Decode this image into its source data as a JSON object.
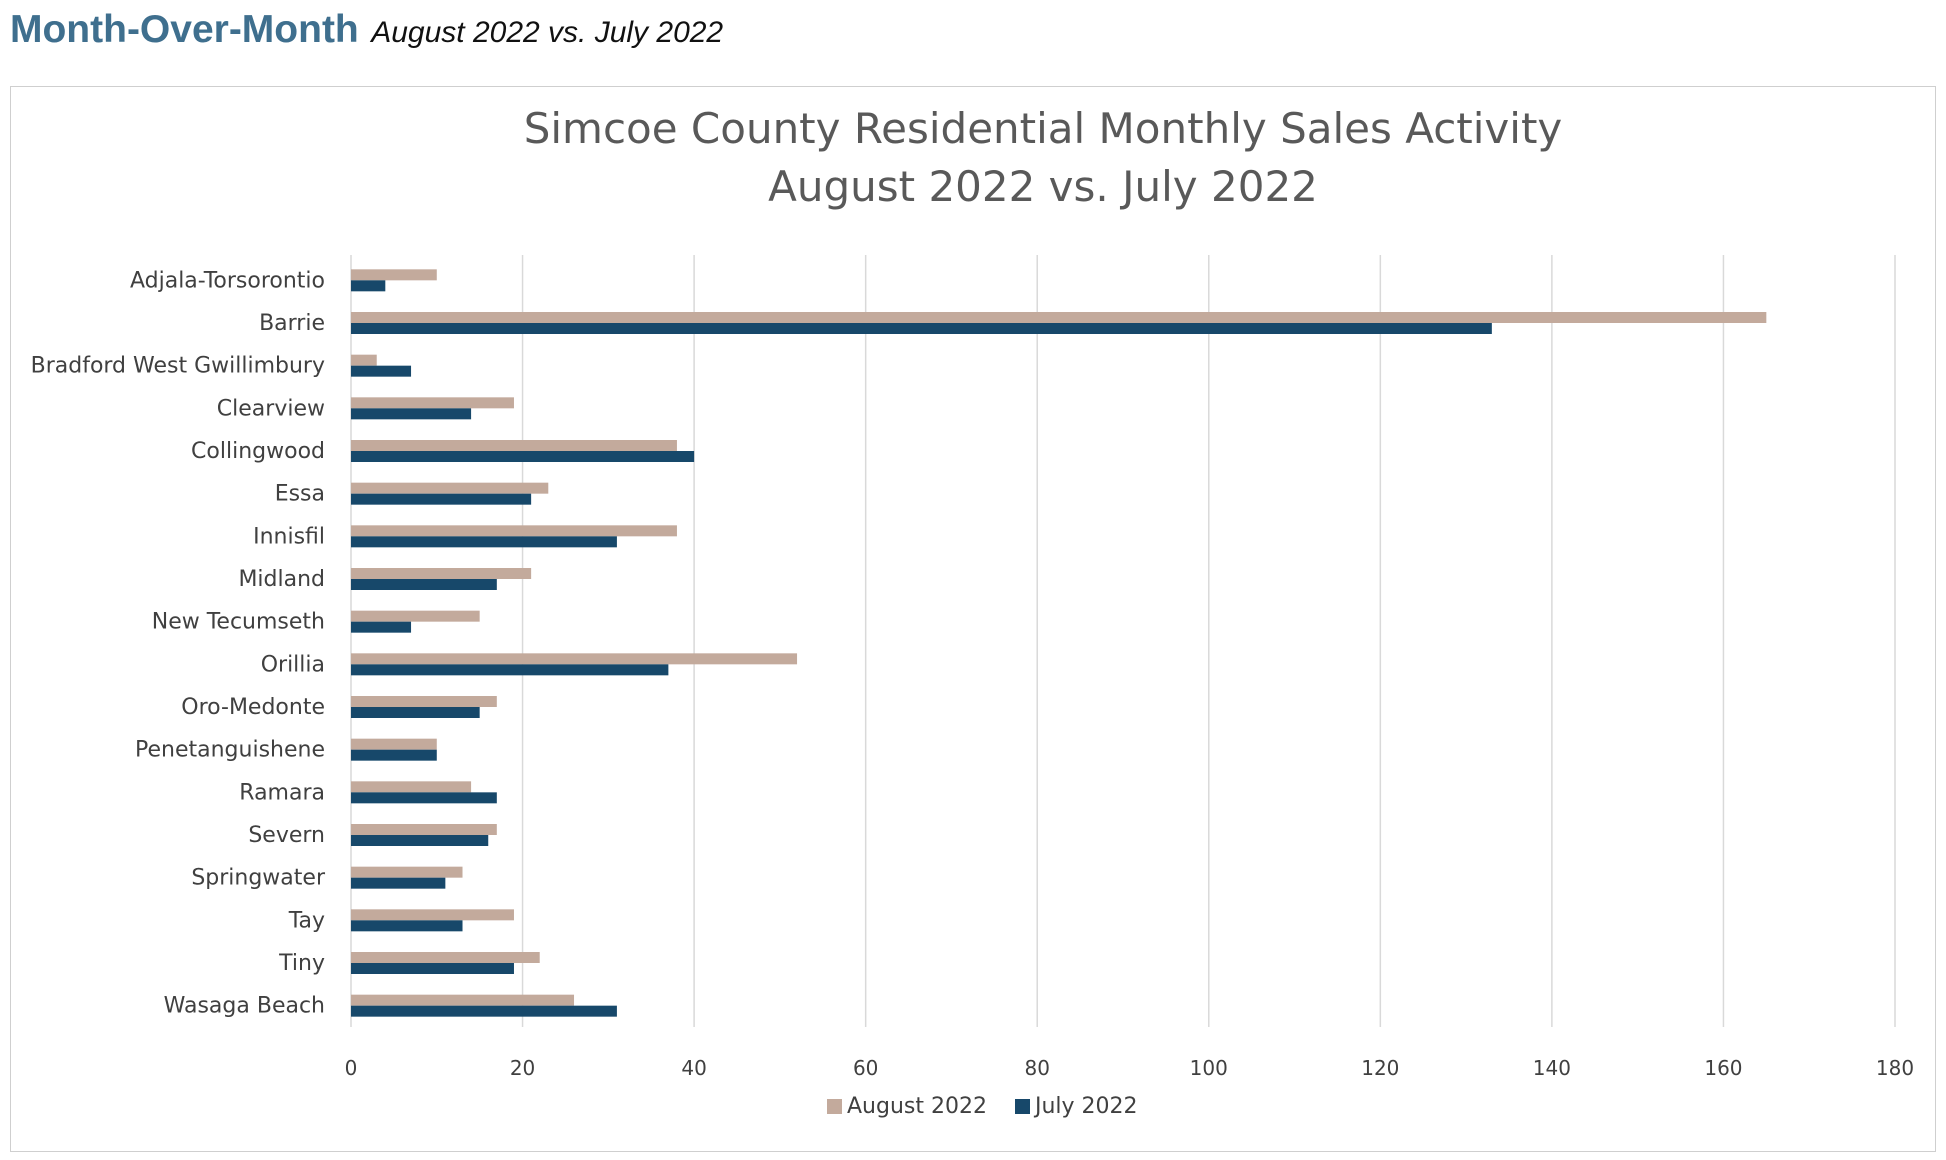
{
  "header": {
    "title": "Month-Over-Month",
    "subtitle": "August 2022 vs. July 2022"
  },
  "colors": {
    "august": "#c3aa9c",
    "july": "#17486a",
    "grid": "#d9d9d9",
    "text": "#404040",
    "title": "#595959",
    "header": "#3f6f8e"
  },
  "chart_data": {
    "type": "bar",
    "orientation": "horizontal",
    "title": "Simcoe County Residential Monthly Sales Activity",
    "subtitle": "August 2022 vs. July 2022",
    "categories": [
      "Adjala-Torsorontio",
      "Barrie",
      "Bradford West Gwillimbury",
      "Clearview",
      "Collingwood",
      "Essa",
      "Innisfil",
      "Midland",
      "New Tecumseth",
      "Orillia",
      "Oro-Medonte",
      "Penetanguishene",
      "Ramara",
      "Severn",
      "Springwater",
      "Tay",
      "Tiny",
      "Wasaga Beach"
    ],
    "series": [
      {
        "name": "August 2022",
        "values": [
          10,
          165,
          3,
          19,
          38,
          23,
          38,
          21,
          15,
          52,
          17,
          10,
          14,
          17,
          13,
          19,
          22,
          26
        ]
      },
      {
        "name": "July 2022",
        "values": [
          4,
          133,
          7,
          14,
          40,
          21,
          31,
          17,
          7,
          37,
          15,
          10,
          17,
          16,
          11,
          13,
          19,
          31
        ]
      }
    ],
    "xlim": [
      0,
      180
    ],
    "xticks": [
      "0",
      "20",
      "40",
      "60",
      "80",
      "100",
      "120",
      "140",
      "160",
      "180"
    ],
    "grid": "vertical",
    "legend_position": "bottom"
  }
}
